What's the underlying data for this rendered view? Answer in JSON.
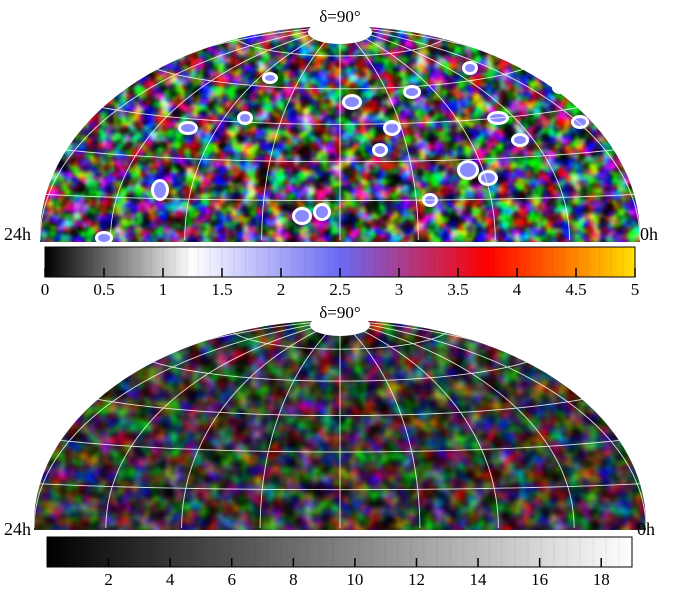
{
  "maps": [
    {
      "pole_label": "δ=90°",
      "left_label": "24h",
      "right_label": "0h",
      "colorbar": {
        "tick_labels": [
          "0",
          "0.5",
          "1",
          "1.5",
          "2",
          "2.5",
          "3",
          "3.5",
          "4",
          "4.5",
          "5"
        ],
        "range": [
          0,
          5
        ],
        "stops": [
          "#000000",
          "#ffffff",
          "#6a6af5",
          "#ff0000",
          "#ffe000"
        ]
      }
    },
    {
      "pole_label": "δ=90°",
      "left_label": "24h",
      "right_label": "0h",
      "colorbar": {
        "tick_labels": [
          "2",
          "4",
          "6",
          "8",
          "10",
          "12",
          "14",
          "16",
          "18"
        ],
        "range": [
          0,
          19
        ],
        "stops": [
          "#000000",
          "#ffffff"
        ]
      }
    }
  ]
}
